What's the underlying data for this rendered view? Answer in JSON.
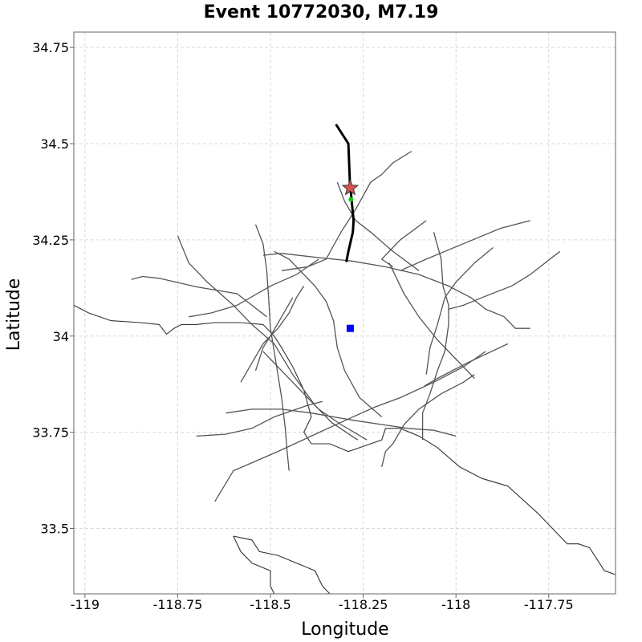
{
  "chart_data": {
    "type": "map",
    "title": "Event 10772030, M7.19",
    "xlabel": "Longitude",
    "ylabel": "Latitude",
    "xlim": [
      -119.03,
      -117.57
    ],
    "ylim": [
      33.33,
      34.79
    ],
    "xticks": [
      -119,
      -118.75,
      -118.5,
      -118.25,
      -118,
      -117.75
    ],
    "xtick_labels": [
      "-119",
      "-118.75",
      "-118.5",
      "-118.25",
      "-118",
      "-117.75"
    ],
    "yticks": [
      34.75,
      34.5,
      34.25,
      34,
      33.75,
      33.5
    ],
    "ytick_labels": [
      "34.75",
      "34.5",
      "34.25",
      "34",
      "33.75",
      "33.5"
    ],
    "grid": true,
    "colors": {
      "faults": "#555555",
      "coastline": "#333333",
      "rupture": "#000000",
      "hypocenter": "#d9534f",
      "hypocenter_edge": "#333333",
      "nearest_point": "#00cc00",
      "site": "#0000ff"
    },
    "site": {
      "lon": -118.285,
      "lat": 34.02
    },
    "hypocenter": {
      "lon": -118.285,
      "lat": 34.385
    },
    "nearest_point": {
      "lon": -118.283,
      "lat": 34.355
    },
    "rupture_trace": [
      [
        -118.322,
        34.548
      ],
      [
        -118.29,
        34.5
      ],
      [
        -118.286,
        34.4
      ],
      [
        -118.276,
        34.3
      ],
      [
        -118.278,
        34.27
      ],
      [
        -118.29,
        34.22
      ],
      [
        -118.295,
        34.195
      ]
    ],
    "faults": [
      [
        [
          -118.875,
          34.147
        ],
        [
          -118.845,
          34.155
        ],
        [
          -118.8,
          34.15
        ],
        [
          -118.7,
          34.128
        ],
        [
          -118.59,
          34.11
        ],
        [
          -118.55,
          34.08
        ],
        [
          -118.51,
          34.05
        ]
      ],
      [
        [
          -118.75,
          34.26
        ],
        [
          -118.72,
          34.19
        ],
        [
          -118.67,
          34.14
        ],
        [
          -118.6,
          34.08
        ],
        [
          -118.55,
          34.03
        ],
        [
          -118.49,
          33.98
        ],
        [
          -118.44,
          33.9
        ],
        [
          -118.38,
          33.82
        ],
        [
          -118.335,
          33.775
        ],
        [
          -118.265,
          33.73
        ]
      ],
      [
        [
          -118.54,
          34.29
        ],
        [
          -118.52,
          34.24
        ],
        [
          -118.51,
          34.17
        ],
        [
          -118.505,
          34.1
        ],
        [
          -118.5,
          34.02
        ],
        [
          -118.485,
          33.93
        ],
        [
          -118.47,
          33.84
        ],
        [
          -118.46,
          33.76
        ],
        [
          -118.455,
          33.7
        ],
        [
          -118.45,
          33.65
        ]
      ],
      [
        [
          -118.72,
          34.05
        ],
        [
          -118.66,
          34.06
        ],
        [
          -118.59,
          34.08
        ],
        [
          -118.5,
          34.13
        ],
        [
          -118.43,
          34.16
        ],
        [
          -118.37,
          34.2
        ]
      ],
      [
        [
          -118.52,
          34.21
        ],
        [
          -118.47,
          34.215
        ],
        [
          -118.38,
          34.205
        ],
        [
          -118.28,
          34.195
        ],
        [
          -118.19,
          34.18
        ],
        [
          -118.1,
          34.16
        ],
        [
          -118.02,
          34.13
        ],
        [
          -117.96,
          34.1
        ],
        [
          -117.92,
          34.07
        ],
        [
          -117.87,
          34.05
        ],
        [
          -117.84,
          34.02
        ],
        [
          -117.8,
          34.02
        ]
      ],
      [
        [
          -118.47,
          34.17
        ],
        [
          -118.4,
          34.18
        ],
        [
          -118.35,
          34.2
        ],
        [
          -118.31,
          34.27
        ],
        [
          -118.27,
          34.33
        ],
        [
          -118.23,
          34.4
        ],
        [
          -118.2,
          34.42
        ],
        [
          -118.17,
          34.45
        ],
        [
          -118.12,
          34.48
        ]
      ],
      [
        [
          -118.32,
          34.4
        ],
        [
          -118.3,
          34.35
        ],
        [
          -118.27,
          34.3
        ],
        [
          -118.23,
          34.27
        ],
        [
          -118.17,
          34.22
        ],
        [
          -118.1,
          34.17
        ]
      ],
      [
        [
          -118.15,
          34.17
        ],
        [
          -118.08,
          34.2
        ],
        [
          -117.98,
          34.24
        ],
        [
          -117.88,
          34.28
        ],
        [
          -117.8,
          34.3
        ]
      ],
      [
        [
          -118.17,
          34.18
        ],
        [
          -118.2,
          34.2
        ],
        [
          -118.15,
          34.25
        ],
        [
          -118.08,
          34.3
        ]
      ],
      [
        [
          -118.06,
          34.27
        ],
        [
          -118.04,
          34.2
        ],
        [
          -118.035,
          34.13
        ],
        [
          -118.02,
          34.08
        ],
        [
          -118.02,
          34.03
        ],
        [
          -118.03,
          33.96
        ],
        [
          -118.05,
          33.91
        ],
        [
          -118.07,
          33.85
        ],
        [
          -118.09,
          33.8
        ],
        [
          -118.09,
          33.73
        ]
      ],
      [
        [
          -118.02,
          34.07
        ],
        [
          -117.98,
          34.08
        ],
        [
          -117.93,
          34.1
        ],
        [
          -117.85,
          34.13
        ],
        [
          -117.8,
          34.16
        ],
        [
          -117.72,
          34.22
        ]
      ],
      [
        [
          -117.9,
          34.23
        ],
        [
          -117.95,
          34.19
        ],
        [
          -118.0,
          34.14
        ],
        [
          -118.03,
          34.1
        ],
        [
          -118.05,
          34.03
        ],
        [
          -118.07,
          33.97
        ],
        [
          -118.08,
          33.9
        ]
      ],
      [
        [
          -118.18,
          34.19
        ],
        [
          -118.14,
          34.11
        ],
        [
          -118.1,
          34.05
        ],
        [
          -118.05,
          33.99
        ],
        [
          -118.0,
          33.94
        ],
        [
          -117.95,
          33.89
        ]
      ],
      [
        [
          -118.085,
          33.87
        ],
        [
          -118.05,
          33.89
        ],
        [
          -117.97,
          33.93
        ],
        [
          -117.86,
          33.98
        ]
      ],
      [
        [
          -117.92,
          33.96
        ],
        [
          -117.98,
          33.92
        ],
        [
          -118.06,
          33.88
        ],
        [
          -118.15,
          33.84
        ],
        [
          -118.22,
          33.815
        ],
        [
          -118.3,
          33.78
        ],
        [
          -118.39,
          33.74
        ],
        [
          -118.48,
          33.7
        ],
        [
          -118.6,
          33.65
        ],
        [
          -118.65,
          33.57
        ]
      ],
      [
        [
          -118.62,
          33.8
        ],
        [
          -118.55,
          33.81
        ],
        [
          -118.47,
          33.81
        ],
        [
          -118.39,
          33.8
        ],
        [
          -118.33,
          33.79
        ],
        [
          -118.27,
          33.78
        ],
        [
          -118.2,
          33.77
        ],
        [
          -118.13,
          33.76
        ],
        [
          -118.06,
          33.755
        ],
        [
          -118.0,
          33.74
        ]
      ],
      [
        [
          -118.2,
          33.66
        ],
        [
          -118.19,
          33.7
        ],
        [
          -118.17,
          33.72
        ],
        [
          -118.14,
          33.77
        ],
        [
          -118.1,
          33.81
        ],
        [
          -118.04,
          33.85
        ],
        [
          -117.98,
          33.88
        ],
        [
          -117.95,
          33.9
        ]
      ],
      [
        [
          -118.49,
          34.22
        ],
        [
          -118.45,
          34.2
        ],
        [
          -118.42,
          34.17
        ],
        [
          -118.38,
          34.13
        ],
        [
          -118.35,
          34.09
        ],
        [
          -118.33,
          34.04
        ],
        [
          -118.32,
          33.97
        ],
        [
          -118.3,
          33.91
        ],
        [
          -118.26,
          33.84
        ],
        [
          -118.2,
          33.79
        ]
      ],
      [
        [
          -118.58,
          33.88
        ],
        [
          -118.55,
          33.93
        ],
        [
          -118.52,
          33.98
        ],
        [
          -118.48,
          34.02
        ],
        [
          -118.45,
          34.06
        ],
        [
          -118.43,
          34.1
        ],
        [
          -118.41,
          34.13
        ]
      ],
      [
        [
          -118.54,
          33.91
        ],
        [
          -118.52,
          33.97
        ],
        [
          -118.5,
          34.0
        ],
        [
          -118.47,
          34.05
        ],
        [
          -118.44,
          34.1
        ]
      ],
      [
        [
          -118.52,
          33.96
        ],
        [
          -118.5,
          33.94
        ],
        [
          -118.47,
          33.91
        ],
        [
          -118.42,
          33.86
        ],
        [
          -118.37,
          33.81
        ],
        [
          -118.31,
          33.77
        ],
        [
          -118.24,
          33.73
        ]
      ],
      [
        [
          -118.7,
          33.74
        ],
        [
          -118.62,
          33.745
        ],
        [
          -118.55,
          33.76
        ],
        [
          -118.49,
          33.79
        ],
        [
          -118.43,
          33.81
        ],
        [
          -118.4,
          33.82
        ],
        [
          -118.36,
          33.83
        ]
      ]
    ],
    "coastline": [
      [
        [
          -119.03,
          34.08
        ],
        [
          -118.99,
          34.06
        ],
        [
          -118.93,
          34.04
        ],
        [
          -118.85,
          34.035
        ],
        [
          -118.8,
          34.03
        ],
        [
          -118.78,
          34.005
        ],
        [
          -118.76,
          34.02
        ],
        [
          -118.74,
          34.03
        ],
        [
          -118.7,
          34.03
        ],
        [
          -118.65,
          34.035
        ],
        [
          -118.58,
          34.035
        ],
        [
          -118.52,
          34.03
        ],
        [
          -118.49,
          34.0
        ],
        [
          -118.47,
          33.97
        ],
        [
          -118.44,
          33.92
        ],
        [
          -118.41,
          33.86
        ],
        [
          -118.39,
          33.79
        ],
        [
          -118.4,
          33.77
        ],
        [
          -118.41,
          33.75
        ],
        [
          -118.39,
          33.72
        ],
        [
          -118.34,
          33.72
        ],
        [
          -118.29,
          33.7
        ],
        [
          -118.23,
          33.72
        ],
        [
          -118.2,
          33.73
        ],
        [
          -118.19,
          33.76
        ],
        [
          -118.15,
          33.76
        ],
        [
          -118.1,
          33.74
        ],
        [
          -118.05,
          33.71
        ],
        [
          -117.99,
          33.66
        ],
        [
          -117.93,
          33.63
        ],
        [
          -117.86,
          33.61
        ],
        [
          -117.78,
          33.54
        ],
        [
          -117.74,
          33.5
        ],
        [
          -117.7,
          33.46
        ],
        [
          -117.67,
          33.46
        ],
        [
          -117.64,
          33.45
        ],
        [
          -117.62,
          33.42
        ],
        [
          -117.6,
          33.39
        ],
        [
          -117.57,
          33.38
        ]
      ],
      [
        [
          -118.6,
          33.48
        ],
        [
          -118.55,
          33.47
        ],
        [
          -118.53,
          33.44
        ],
        [
          -118.48,
          33.43
        ],
        [
          -118.43,
          33.41
        ],
        [
          -118.38,
          33.39
        ],
        [
          -118.36,
          33.35
        ],
        [
          -118.34,
          33.33
        ]
      ],
      [
        [
          -118.6,
          33.48
        ],
        [
          -118.58,
          33.44
        ],
        [
          -118.55,
          33.41
        ],
        [
          -118.5,
          33.39
        ],
        [
          -118.5,
          33.35
        ],
        [
          -118.49,
          33.33
        ]
      ]
    ]
  }
}
